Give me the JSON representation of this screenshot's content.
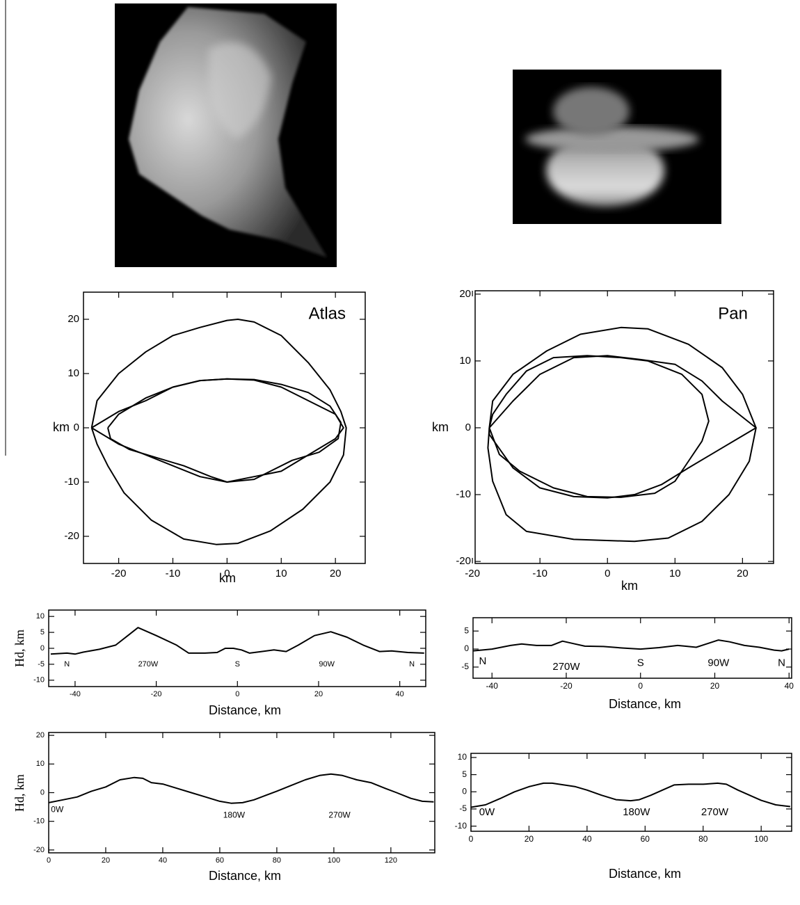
{
  "chart_data": [
    {
      "type": "line",
      "title": "Atlas",
      "xlabel": "km",
      "ylabel": "km",
      "xlim": [
        -26.5,
        25.5
      ],
      "ylim": [
        -25,
        25
      ],
      "xticks": [
        -20,
        -10,
        0,
        10,
        20
      ],
      "yticks": [
        -20,
        -10,
        0,
        10,
        20
      ],
      "series": [
        {
          "color": "#000",
          "x": [
            -25,
            -24,
            -20,
            -15,
            -10,
            -5,
            0,
            2,
            5,
            10,
            15,
            19,
            21,
            22,
            21.5,
            19,
            14,
            8,
            2,
            -2,
            -8,
            -14,
            -19,
            -22,
            -24,
            -25
          ],
          "values": [
            0,
            5,
            10,
            14,
            17,
            18.5,
            19.8,
            20,
            19.5,
            17,
            12,
            7,
            3,
            0,
            -5,
            -10,
            -15,
            -19,
            -21.3,
            -21.5,
            -20.5,
            -17,
            -12,
            -7,
            -3,
            0
          ]
        },
        {
          "color": "#000",
          "x": [
            -25,
            -20,
            -15,
            -10,
            -5,
            0,
            5,
            10,
            15,
            20,
            21.5,
            20,
            15,
            10,
            5,
            0,
            -5,
            -10,
            -15,
            -20,
            -25
          ],
          "values": [
            0,
            3,
            5,
            7.5,
            8.7,
            9,
            8.8,
            7.5,
            5,
            2.5,
            0,
            -2,
            -5,
            -8,
            -9,
            -10,
            -9,
            -7,
            -5,
            -3,
            0
          ]
        },
        {
          "color": "#000",
          "x": [
            -22,
            -20,
            -15,
            -10,
            -5,
            0,
            5,
            10,
            15,
            19,
            21,
            20.5,
            17,
            12,
            8,
            5,
            0,
            -3,
            -8,
            -13,
            -18,
            -21.5,
            -22
          ],
          "values": [
            0,
            2.5,
            5.5,
            7.5,
            8.7,
            9,
            8.9,
            8,
            6.5,
            4,
            1,
            -2,
            -4.5,
            -6,
            -8,
            -9.5,
            -10,
            -9,
            -7,
            -5.5,
            -4,
            -2,
            0
          ]
        }
      ]
    },
    {
      "type": "line",
      "title": "Pan",
      "xlabel": "km",
      "ylabel": "km",
      "xlim": [
        -19.6,
        24.6
      ],
      "ylim": [
        -20.3,
        20.5
      ],
      "xticks": [
        -20,
        -10,
        0,
        10,
        20
      ],
      "yticks": [
        -20,
        -10,
        0,
        10,
        20
      ],
      "series": [
        {
          "color": "#000",
          "x": [
            -17.5,
            -17,
            -14,
            -9,
            -4,
            2,
            6,
            12,
            17,
            20,
            22,
            21,
            18,
            14,
            9,
            4,
            -5,
            -12,
            -15,
            -17,
            -17.7,
            -17.5
          ],
          "values": [
            0,
            4,
            8,
            11.5,
            14,
            15,
            14.8,
            12.5,
            9,
            5,
            0,
            -5,
            -10,
            -14,
            -16.5,
            -17,
            -16.7,
            -15.5,
            -13,
            -8,
            -3,
            0
          ]
        },
        {
          "color": "#000",
          "x": [
            -17.5,
            -14,
            -10,
            -5,
            0,
            5,
            10,
            14,
            17,
            22,
            17,
            12,
            8,
            4,
            0,
            -5,
            -10,
            -14,
            -17.5,
            -17.5
          ],
          "values": [
            0,
            4,
            8,
            10.5,
            10.8,
            10.2,
            9.5,
            7,
            4,
            0,
            -3,
            -6,
            -8.5,
            -10,
            -10.5,
            -10.3,
            -9,
            -6,
            -1,
            0
          ]
        },
        {
          "color": "#000",
          "x": [
            -17.5,
            -16,
            -13,
            -8,
            -3,
            2,
            7,
            10,
            12,
            14,
            15,
            14,
            11,
            6,
            2,
            -3,
            -8,
            -12,
            -15,
            -17,
            -17.5
          ],
          "values": [
            0,
            -4,
            -6.5,
            -9,
            -10.3,
            -10.4,
            -9.8,
            -8,
            -5,
            -2,
            1,
            5,
            8,
            10,
            10.5,
            10.8,
            10.5,
            8.5,
            5,
            2,
            0
          ]
        }
      ]
    },
    {
      "type": "line",
      "xlabel": "Distance, km",
      "ylabel": "Hd, km",
      "xlim": [
        -46.5,
        46.4
      ],
      "ylim": [
        -12,
        12
      ],
      "xticks": [
        -40,
        -20,
        0,
        20,
        40
      ],
      "yticks": [
        10,
        5,
        0,
        -5,
        -10
      ],
      "series": [
        {
          "color": "#000",
          "x": [
            -46,
            -42,
            -40,
            -38,
            -34,
            -30,
            -27,
            -24.5,
            -20,
            -15,
            -12,
            -8,
            -5,
            -3,
            -1,
            1,
            3,
            6,
            9,
            12,
            15,
            19,
            23,
            27,
            31,
            35,
            38,
            42,
            46
          ],
          "values": [
            -1.8,
            -1.5,
            -1.8,
            -1.2,
            -0.3,
            1,
            4,
            6.5,
            4,
            1,
            -1.5,
            -1.5,
            -1.3,
            0,
            0,
            -0.5,
            -1.5,
            -1,
            -0.5,
            -1,
            1,
            4,
            5.2,
            3.5,
            1,
            -1,
            -0.8,
            -1.3,
            -1.5
          ]
        }
      ],
      "annotations": [
        {
          "text": "N",
          "x": -42,
          "y": -5
        },
        {
          "text": "270W",
          "x": -22,
          "y": -5
        },
        {
          "text": "S",
          "x": 0,
          "y": -5
        },
        {
          "text": "90W",
          "x": 22,
          "y": -5
        },
        {
          "text": "N",
          "x": 43,
          "y": -5
        }
      ]
    },
    {
      "type": "line",
      "xlabel": "Distance, km",
      "xlim": [
        -45.1,
        40.7
      ],
      "ylim": [
        -8.1,
        8.7
      ],
      "xticks": [
        -40,
        -20,
        0,
        20,
        40
      ],
      "yticks": [
        5,
        0,
        -5
      ],
      "series": [
        {
          "color": "#000",
          "x": [
            -45,
            -40,
            -35,
            -32,
            -28,
            -24,
            -21,
            -18,
            -15,
            -10,
            -5,
            0,
            5,
            10,
            12,
            15,
            18,
            21,
            24,
            28,
            32,
            36,
            38,
            40
          ],
          "values": [
            -0.5,
            0,
            1,
            1.4,
            1,
            1,
            2.2,
            1.5,
            0.8,
            0.7,
            0.3,
            0,
            0.4,
            1,
            0.8,
            0.5,
            1.5,
            2.5,
            2,
            1,
            0.5,
            -0.3,
            -0.5,
            0
          ]
        }
      ],
      "annotations": [
        {
          "text": "N",
          "x": -42.5,
          "y": -3.5
        },
        {
          "text": "270W",
          "x": -20,
          "y": -5
        },
        {
          "text": "S",
          "x": 0,
          "y": -4
        },
        {
          "text": "90W",
          "x": 21,
          "y": -4
        },
        {
          "text": "N",
          "x": 38,
          "y": -4
        }
      ]
    },
    {
      "type": "line",
      "xlabel": "Distance, km",
      "ylabel": "Hd, km",
      "xlim": [
        0,
        135.4
      ],
      "ylim": [
        -21,
        21
      ],
      "xticks": [
        0,
        20,
        40,
        60,
        80,
        100,
        120
      ],
      "yticks": [
        20,
        10,
        0,
        -10,
        -20
      ],
      "series": [
        {
          "color": "#000",
          "x": [
            0,
            5,
            10,
            15,
            20,
            25,
            30,
            33,
            36,
            40,
            45,
            50,
            55,
            60,
            64,
            68,
            72,
            76,
            80,
            85,
            90,
            95,
            99,
            103,
            108,
            113,
            118,
            122,
            127,
            131,
            135
          ],
          "values": [
            -3.5,
            -2.5,
            -1.5,
            0.5,
            2,
            4.5,
            5.3,
            5,
            3.5,
            3,
            1.5,
            0,
            -1.5,
            -3,
            -3.7,
            -3.5,
            -2.5,
            -1,
            0.5,
            2.5,
            4.5,
            6,
            6.5,
            6,
            4.5,
            3.5,
            1.5,
            0,
            -2,
            -3,
            -3.2
          ]
        }
      ],
      "annotations": [
        {
          "text": "0W",
          "x": 3,
          "y": -6
        },
        {
          "text": "180W",
          "x": 65,
          "y": -8
        },
        {
          "text": "270W",
          "x": 102,
          "y": -8
        }
      ]
    },
    {
      "type": "line",
      "xlabel": "Distance, km",
      "xlim": [
        0,
        110.5
      ],
      "ylim": [
        -11.5,
        11.2
      ],
      "xticks": [
        0,
        20,
        40,
        60,
        80,
        100
      ],
      "yticks": [
        10,
        5,
        0,
        -5,
        -10
      ],
      "series": [
        {
          "color": "#000",
          "x": [
            0,
            5,
            10,
            15,
            20,
            25,
            28,
            32,
            36,
            40,
            45,
            50,
            55,
            58,
            62,
            66,
            70,
            75,
            80,
            85,
            88,
            92,
            96,
            100,
            105,
            110
          ],
          "values": [
            -4.5,
            -3.8,
            -2,
            0,
            1.5,
            2.5,
            2.5,
            2,
            1.5,
            0.5,
            -1,
            -2.3,
            -2.6,
            -2.3,
            -1,
            0.5,
            2,
            2.2,
            2.2,
            2.5,
            2.2,
            0.5,
            -1,
            -2.5,
            -3.8,
            -4.3
          ]
        }
      ],
      "annotations": [
        {
          "text": "0W",
          "x": 5.5,
          "y": -6
        },
        {
          "text": "180W",
          "x": 57,
          "y": -6
        },
        {
          "text": "270W",
          "x": 84,
          "y": -6
        }
      ]
    }
  ]
}
